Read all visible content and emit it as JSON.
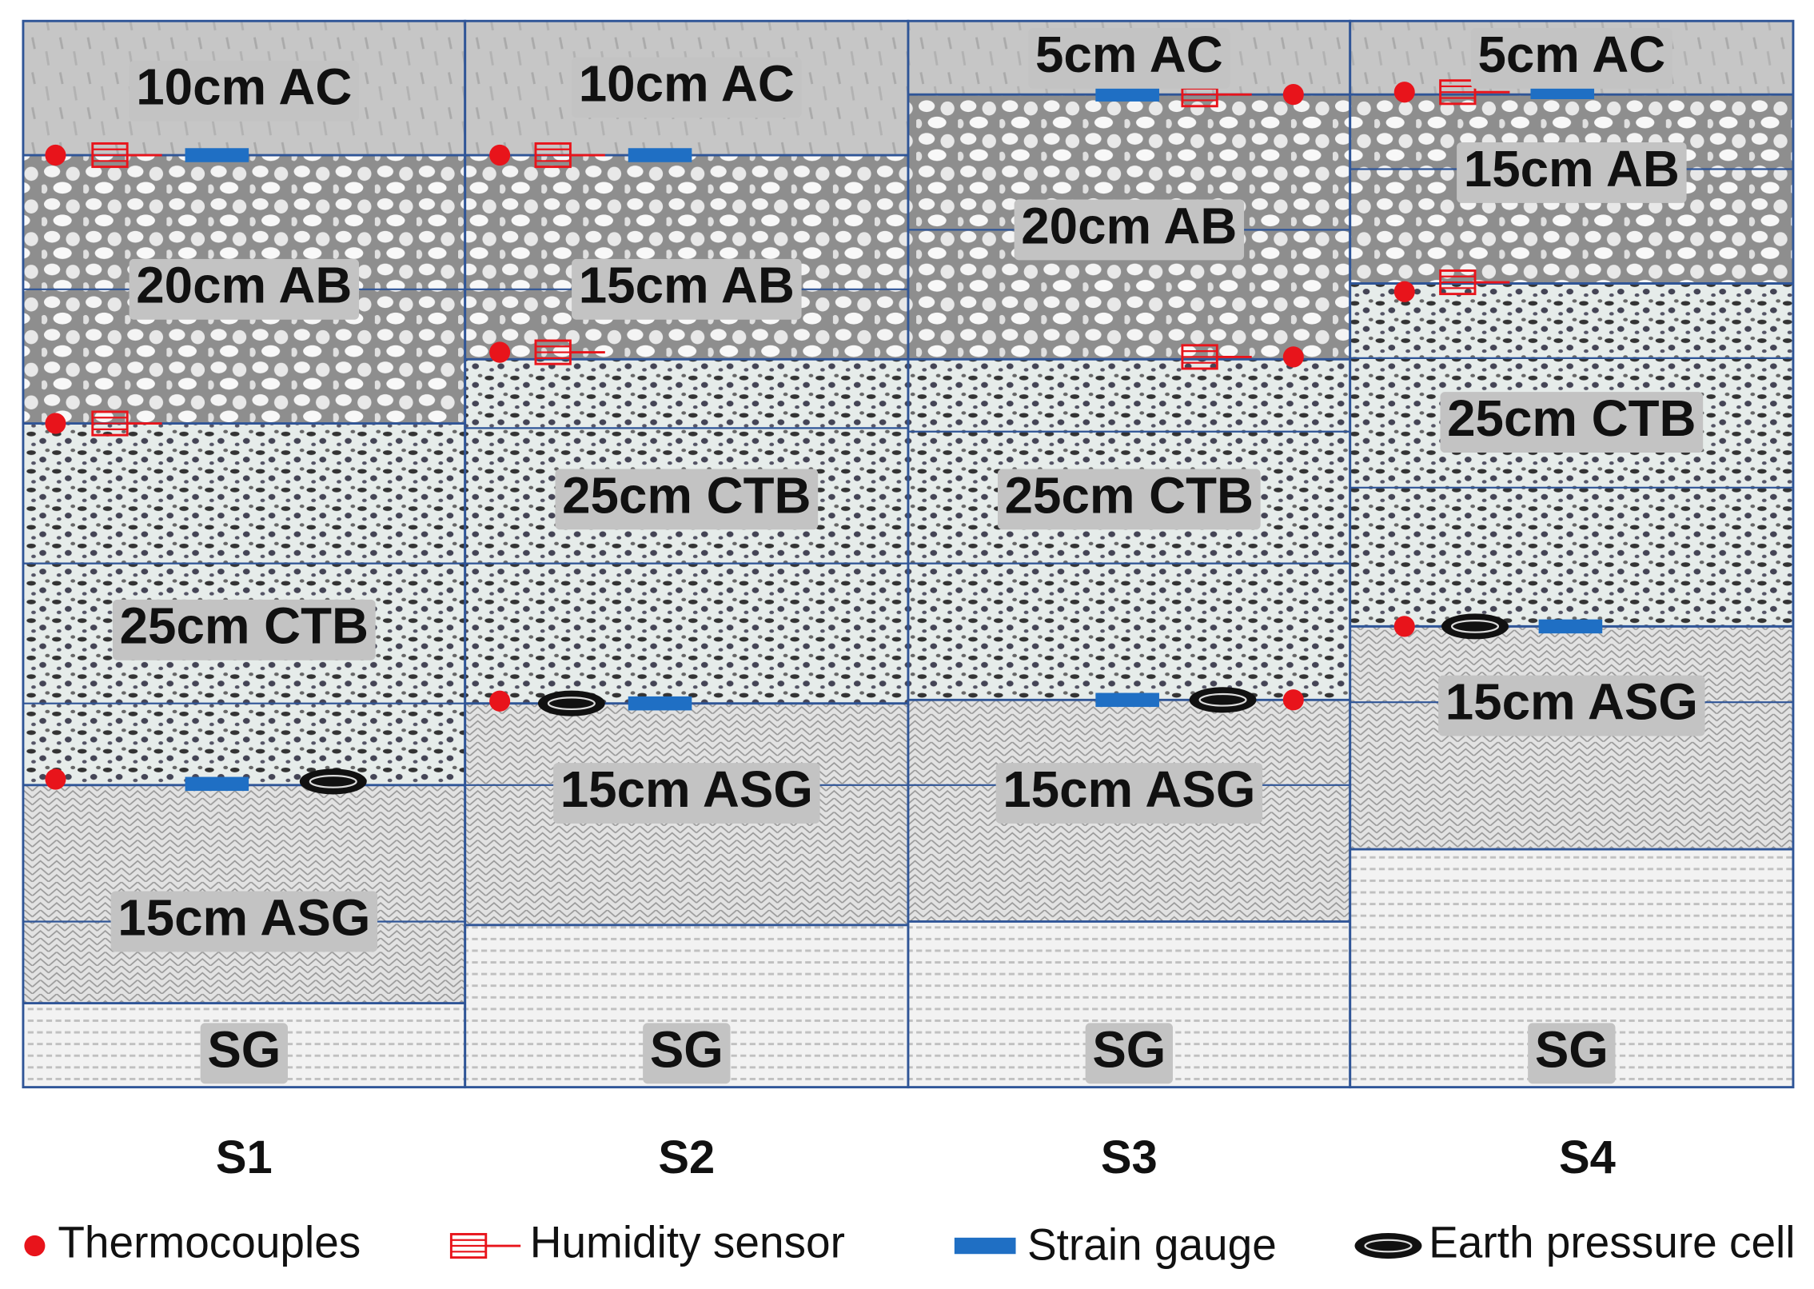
{
  "sections": [
    {
      "label": "S1",
      "layers": [
        "10cm AC",
        "20cm AB",
        "25cm CTB",
        "15cm ASG",
        "SG"
      ]
    },
    {
      "label": "S2",
      "layers": [
        "10cm AC",
        "15cm AB",
        "25cm CTB",
        "15cm ASG",
        "SG"
      ]
    },
    {
      "label": "S3",
      "layers": [
        "5cm AC",
        "20cm AB",
        "25cm CTB",
        "15cm ASG",
        "SG"
      ]
    },
    {
      "label": "S4",
      "layers": [
        "5cm AC",
        "15cm AB",
        "25cm CTB",
        "15cm ASG",
        "SG"
      ]
    }
  ],
  "legend": [
    "Thermocouples",
    "Humidity sensor",
    "Strain gauge",
    "Earth pressure cell"
  ]
}
